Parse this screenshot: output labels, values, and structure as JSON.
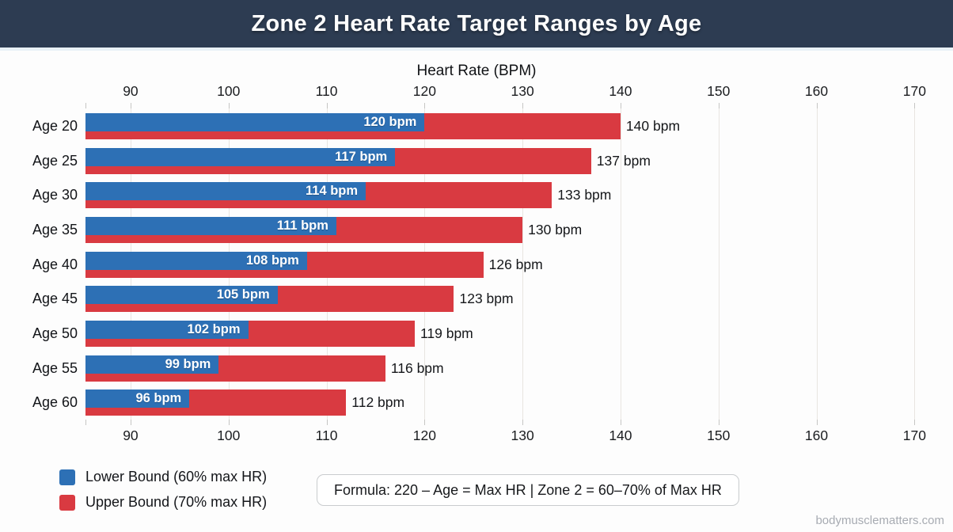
{
  "header": {
    "title": "Zone 2 Heart Rate Target Ranges by Age"
  },
  "chart_data": {
    "type": "bar",
    "orientation": "horizontal",
    "title": "Zone 2 Heart Rate Target Ranges by Age",
    "xlabel": "Heart Rate (BPM)",
    "ylabel": "",
    "categories": [
      "Age 20",
      "Age 25",
      "Age 30",
      "Age 35",
      "Age 40",
      "Age 45",
      "Age 50",
      "Age 55",
      "Age 60"
    ],
    "series": [
      {
        "name": "Lower Bound (60% max HR)",
        "color": "#2d70b5",
        "values": [
          120,
          117,
          114,
          111,
          108,
          105,
          102,
          99,
          96
        ],
        "labels": [
          "120 bpm",
          "117 bpm",
          "114 bpm",
          "111 bpm",
          "108 bpm",
          "105 bpm",
          "102 bpm",
          "99 bpm",
          "96 bpm"
        ]
      },
      {
        "name": "Upper Bound (70% max HR)",
        "color": "#d93a41",
        "values": [
          140,
          137,
          133,
          130,
          126,
          123,
          119,
          116,
          112
        ],
        "labels": [
          "140 bpm",
          "137 bpm",
          "133 bpm",
          "130 bpm",
          "126 bpm",
          "123 bpm",
          "119 bpm",
          "116 bpm",
          "112 bpm"
        ]
      }
    ],
    "axis": {
      "min": 85.4,
      "max": 172.8,
      "ticks": [
        90,
        100,
        110,
        120,
        130,
        140,
        150,
        160,
        170
      ]
    },
    "grid": true,
    "legend_position": "bottom-left"
  },
  "formula": {
    "text": "Formula: 220 – Age = Max HR | Zone 2 = 60–70% of Max HR"
  },
  "watermark": {
    "text": "bodymusclematters.com"
  },
  "colors": {
    "header_bg": "#2d3c52",
    "lower_bar": "#2d70b5",
    "upper_bar": "#d93a41",
    "gridline": "#e8e5e1",
    "page_bg": "#fdfdfd",
    "watermark": "#a7abb2"
  }
}
